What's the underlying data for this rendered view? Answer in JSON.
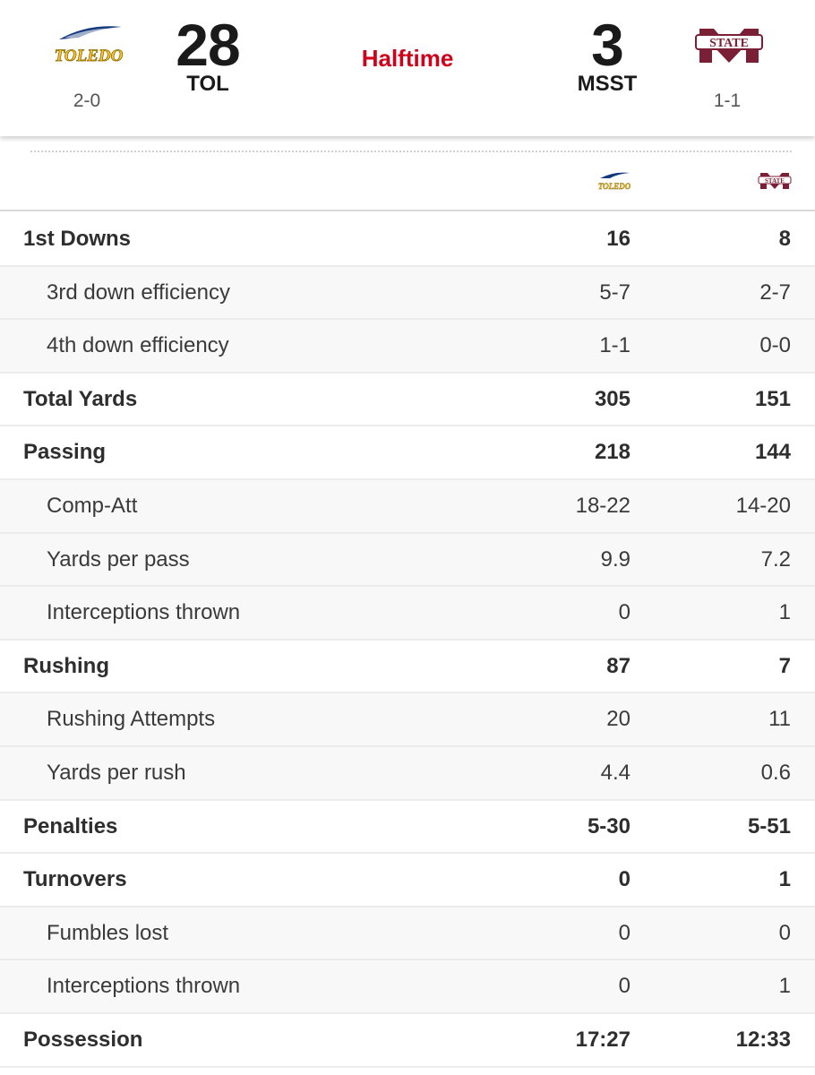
{
  "game": {
    "status": "Halftime",
    "home": {
      "abbr": "TOL",
      "score": "28",
      "record": "2-0",
      "logo_text": "TOLEDO",
      "color": "#ffc629"
    },
    "away": {
      "abbr": "MSST",
      "score": "3",
      "record": "1-1",
      "logo_text": "STATE",
      "color": "#7a1f35"
    }
  },
  "colors": {
    "status": "#d0021b",
    "toledo_gold": "#ffc629",
    "toledo_blue": "#15397f",
    "msst_maroon": "#7a1f35"
  },
  "stats": [
    {
      "label": "1st Downs",
      "tol": "16",
      "msst": "8",
      "type": "main"
    },
    {
      "label": "3rd down efficiency",
      "tol": "5-7",
      "msst": "2-7",
      "type": "sub"
    },
    {
      "label": "4th down efficiency",
      "tol": "1-1",
      "msst": "0-0",
      "type": "sub"
    },
    {
      "label": "Total Yards",
      "tol": "305",
      "msst": "151",
      "type": "main"
    },
    {
      "label": "Passing",
      "tol": "218",
      "msst": "144",
      "type": "main"
    },
    {
      "label": "Comp-Att",
      "tol": "18-22",
      "msst": "14-20",
      "type": "sub"
    },
    {
      "label": "Yards per pass",
      "tol": "9.9",
      "msst": "7.2",
      "type": "sub"
    },
    {
      "label": "Interceptions thrown",
      "tol": "0",
      "msst": "1",
      "type": "sub"
    },
    {
      "label": "Rushing",
      "tol": "87",
      "msst": "7",
      "type": "main"
    },
    {
      "label": "Rushing Attempts",
      "tol": "20",
      "msst": "11",
      "type": "sub"
    },
    {
      "label": "Yards per rush",
      "tol": "4.4",
      "msst": "0.6",
      "type": "sub"
    },
    {
      "label": "Penalties",
      "tol": "5-30",
      "msst": "5-51",
      "type": "main"
    },
    {
      "label": "Turnovers",
      "tol": "0",
      "msst": "1",
      "type": "main"
    },
    {
      "label": "Fumbles lost",
      "tol": "0",
      "msst": "0",
      "type": "sub"
    },
    {
      "label": "Interceptions thrown",
      "tol": "0",
      "msst": "1",
      "type": "sub"
    },
    {
      "label": "Possession",
      "tol": "17:27",
      "msst": "12:33",
      "type": "main"
    }
  ]
}
